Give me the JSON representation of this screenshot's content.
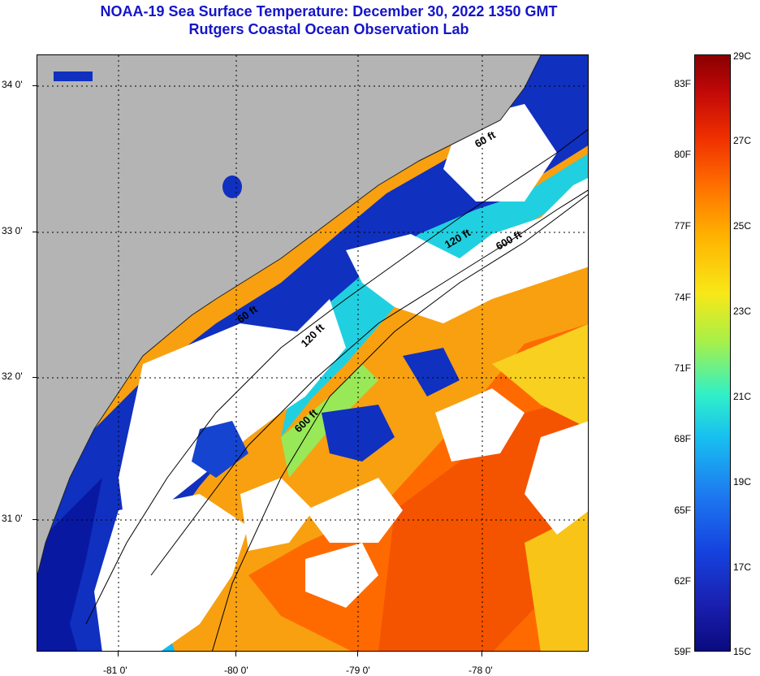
{
  "title": {
    "line1": "NOAA-19 Sea Surface Temperature:  December 30, 2022 1350 GMT",
    "line2": "Rutgers Coastal Ocean Observation Lab"
  },
  "map": {
    "land_color": "#b4b4b4",
    "cloud_color": "#ffffff",
    "lat_labels": [
      "34 0'",
      "33 0'",
      "32 0'",
      "31 0'"
    ],
    "lon_labels": [
      "-81 0'",
      "-80 0'",
      "-79 0'",
      "-78 0'"
    ],
    "contour_labels": [
      "60 ft",
      "120 ft",
      "600 ft",
      "60 ft",
      "120 ft",
      "600 ft"
    ]
  },
  "colorbar": {
    "fahrenheit": [
      "83F",
      "80F",
      "77F",
      "74F",
      "71F",
      "68F",
      "65F",
      "62F",
      "59F"
    ],
    "celsius": [
      "29C",
      "27C",
      "25C",
      "23C",
      "21C",
      "19C",
      "17C",
      "15C"
    ]
  }
}
